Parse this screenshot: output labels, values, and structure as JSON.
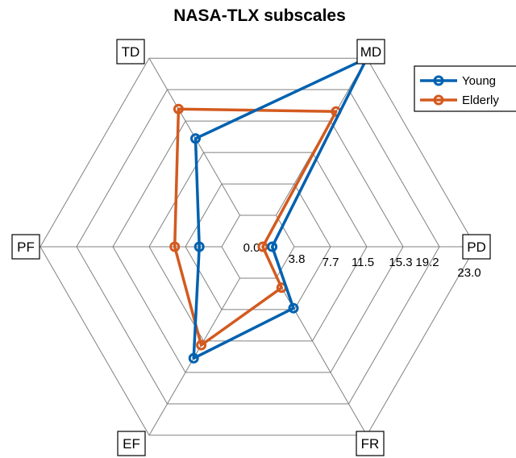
{
  "chart_data": {
    "type": "radar",
    "title": "NASA-TLX subscales",
    "axes": [
      "MD",
      "PD",
      "FR",
      "EF",
      "PF",
      "TD"
    ],
    "rlim": [
      0,
      23.0
    ],
    "ticks": [
      "0.0",
      "3.8",
      "7.7",
      "11.5",
      "15.3",
      "19.2",
      "23.0"
    ],
    "grid": true,
    "legend": "top-right",
    "series": [
      {
        "name": "Young",
        "color": "#0061b0",
        "values": [
          23.0,
          1.5,
          7.5,
          13.6,
          6.2,
          13.2
        ]
      },
      {
        "name": "Elderly",
        "color": "#d35a1f",
        "values": [
          16.5,
          0.5,
          5.0,
          12.0,
          8.8,
          16.8
        ]
      }
    ]
  }
}
